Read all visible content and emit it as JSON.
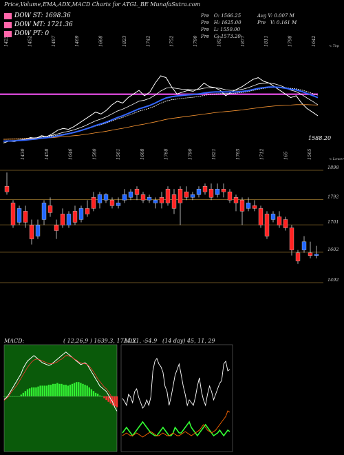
{
  "chart_data": [
    {
      "type": "line",
      "title": "Price,Volume,EMA,ADX,MACD Charts for ATGL_BE MunafaSutra.com",
      "legend": [
        {
          "name": "DOW ST: 1698.36",
          "color": "#ff66aa"
        },
        {
          "name": "DOW MT: 1721.36",
          "color": "#ff66aa"
        },
        {
          "name": "DOW PT: 0",
          "color": "#ff66aa"
        }
      ],
      "ohlc": {
        "open": "O: 1566.25",
        "high": "H: 1625.00",
        "low": "L: 1550.00",
        "close": "C: 1573.20",
        "prefix": "Pre"
      },
      "volume": {
        "avg": "Avg V: 0.007 M",
        "last": "V: 0.161 M"
      },
      "top_labels": [
        "1425",
        "1452",
        "1487",
        "1469",
        "1668",
        "1823",
        "1742",
        "1752",
        "1790",
        "1821",
        "1877",
        "1811",
        "1798",
        "1642"
      ],
      "top_edge_label": "< Top",
      "lower_labels": [
        "1430",
        "1458",
        "1646",
        "1580",
        "1561",
        "1608",
        "1768",
        "1790",
        "1821",
        "1765",
        "1712",
        "165",
        "1565"
      ],
      "lower_edge_label": "< Lower",
      "last_price_label": "1588.20",
      "horizontal_level": 1698.36,
      "series": [
        {
          "name": "price",
          "color": "#ffffff",
          "values": [
            1430,
            1440,
            1438,
            1445,
            1450,
            1460,
            1455,
            1470,
            1465,
            1480,
            1500,
            1510,
            1505,
            1520,
            1540,
            1560,
            1580,
            1600,
            1590,
            1610,
            1640,
            1660,
            1650,
            1680,
            1700,
            1720,
            1690,
            1710,
            1760,
            1800,
            1790,
            1740,
            1700,
            1710,
            1720,
            1715,
            1730,
            1760,
            1740,
            1735,
            1720,
            1690,
            1710,
            1725,
            1740,
            1760,
            1780,
            1790,
            1770,
            1760,
            1740,
            1720,
            1700,
            1680,
            1690,
            1650,
            1620,
            1600,
            1580
          ]
        },
        {
          "name": "ema-short",
          "color": "#ffffff",
          "values": [
            1440,
            1442,
            1444,
            1447,
            1450,
            1455,
            1458,
            1463,
            1467,
            1472,
            1480,
            1488,
            1494,
            1502,
            1512,
            1524,
            1538,
            1552,
            1562,
            1574,
            1590,
            1606,
            1616,
            1630,
            1645,
            1660,
            1666,
            1676,
            1694,
            1716,
            1732,
            1735,
            1730,
            1726,
            1725,
            1723,
            1725,
            1732,
            1734,
            1734,
            1731,
            1723,
            1720,
            1721,
            1725,
            1733,
            1744,
            1755,
            1759,
            1760,
            1756,
            1747,
            1735,
            1721,
            1713,
            1697,
            1678,
            1660,
            1640
          ]
        },
        {
          "name": "ema-mid",
          "color": "#ffffff",
          "values": [
            1450,
            1451,
            1452,
            1453,
            1455,
            1457,
            1459,
            1462,
            1465,
            1468,
            1473,
            1478,
            1483,
            1489,
            1496,
            1504,
            1513,
            1523,
            1531,
            1540,
            1551,
            1562,
            1571,
            1582,
            1593,
            1605,
            1613,
            1622,
            1634,
            1649,
            1661,
            1668,
            1672,
            1676,
            1679,
            1682,
            1686,
            1692,
            1697,
            1700,
            1702,
            1702,
            1703,
            1705,
            1708,
            1713,
            1719,
            1726,
            1731,
            1735,
            1737,
            1737,
            1735,
            1731,
            1728,
            1722,
            1713,
            1703,
            1692
          ]
        },
        {
          "name": "ema-long",
          "color": "#ff9933",
          "values": [
            1450,
            1451,
            1451,
            1452,
            1453,
            1454,
            1455,
            1456,
            1458,
            1459,
            1462,
            1464,
            1467,
            1470,
            1473,
            1477,
            1481,
            1486,
            1490,
            1495,
            1500,
            1506,
            1511,
            1517,
            1523,
            1529,
            1534,
            1540,
            1546,
            1553,
            1560,
            1565,
            1569,
            1573,
            1577,
            1581,
            1585,
            1589,
            1593,
            1597,
            1600,
            1603,
            1606,
            1609,
            1612,
            1616,
            1620,
            1624,
            1628,
            1631,
            1634,
            1636,
            1638,
            1639,
            1641,
            1641,
            1641,
            1640,
            1639
          ]
        },
        {
          "name": "ema-blue",
          "color": "#3366ff",
          "values": [
            1440,
            1441,
            1442,
            1444,
            1446,
            1449,
            1452,
            1456,
            1459,
            1463,
            1469,
            1475,
            1481,
            1488,
            1496,
            1505,
            1515,
            1526,
            1535,
            1545,
            1557,
            1570,
            1580,
            1592,
            1605,
            1618,
            1627,
            1637,
            1650,
            1665,
            1678,
            1685,
            1689,
            1692,
            1695,
            1697,
            1700,
            1705,
            1709,
            1711,
            1712,
            1711,
            1711,
            1712,
            1714,
            1718,
            1724,
            1731,
            1735,
            1738,
            1738,
            1736,
            1732,
            1726,
            1722,
            1714,
            1703,
            1692,
            1680
          ]
        }
      ]
    },
    {
      "type": "bar",
      "title": "",
      "price_levels": [
        {
          "label": "1898",
          "value": 1898
        },
        {
          "label": "1792",
          "value": 1792
        },
        {
          "label": "1701",
          "value": 1701
        },
        {
          "label": "1602",
          "value": 1602
        },
        {
          "label": "1492",
          "value": 1492
        }
      ],
      "candles": [
        {
          "o": 1840,
          "c": 1820,
          "h": 1890,
          "l": 1810
        },
        {
          "o": 1780,
          "c": 1700,
          "h": 1790,
          "l": 1690
        },
        {
          "o": 1710,
          "c": 1760,
          "h": 1770,
          "l": 1700
        },
        {
          "o": 1750,
          "c": 1710,
          "h": 1770,
          "l": 1690
        },
        {
          "o": 1700,
          "c": 1650,
          "h": 1720,
          "l": 1630
        },
        {
          "o": 1660,
          "c": 1700,
          "h": 1720,
          "l": 1650
        },
        {
          "o": 1720,
          "c": 1780,
          "h": 1790,
          "l": 1700
        },
        {
          "o": 1770,
          "c": 1745,
          "h": 1800,
          "l": 1730
        },
        {
          "o": 1700,
          "c": 1680,
          "h": 1720,
          "l": 1650
        },
        {
          "o": 1740,
          "c": 1700,
          "h": 1760,
          "l": 1690
        },
        {
          "o": 1700,
          "c": 1740,
          "h": 1750,
          "l": 1690
        },
        {
          "o": 1750,
          "c": 1710,
          "h": 1770,
          "l": 1700
        },
        {
          "o": 1720,
          "c": 1760,
          "h": 1770,
          "l": 1710
        },
        {
          "o": 1760,
          "c": 1740,
          "h": 1790,
          "l": 1730
        },
        {
          "o": 1800,
          "c": 1760,
          "h": 1820,
          "l": 1750
        },
        {
          "o": 1780,
          "c": 1810,
          "h": 1820,
          "l": 1760
        },
        {
          "o": 1790,
          "c": 1810,
          "h": 1815,
          "l": 1780
        },
        {
          "o": 1790,
          "c": 1770,
          "h": 1800,
          "l": 1760
        },
        {
          "o": 1770,
          "c": 1780,
          "h": 1800,
          "l": 1760
        },
        {
          "o": 1790,
          "c": 1810,
          "h": 1830,
          "l": 1780
        },
        {
          "o": 1800,
          "c": 1820,
          "h": 1830,
          "l": 1790
        },
        {
          "o": 1830,
          "c": 1810,
          "h": 1840,
          "l": 1790
        },
        {
          "o": 1810,
          "c": 1790,
          "h": 1820,
          "l": 1780
        },
        {
          "o": 1790,
          "c": 1800,
          "h": 1810,
          "l": 1780
        },
        {
          "o": 1780,
          "c": 1790,
          "h": 1800,
          "l": 1760
        },
        {
          "o": 1800,
          "c": 1780,
          "h": 1820,
          "l": 1760
        },
        {
          "o": 1830,
          "c": 1780,
          "h": 1840,
          "l": 1770
        },
        {
          "o": 1810,
          "c": 1760,
          "h": 1830,
          "l": 1740
        },
        {
          "o": 1830,
          "c": 1780,
          "h": 1840,
          "l": 1700
        },
        {
          "o": 1820,
          "c": 1800,
          "h": 1840,
          "l": 1790
        },
        {
          "o": 1800,
          "c": 1810,
          "h": 1820,
          "l": 1790
        },
        {
          "o": 1810,
          "c": 1830,
          "h": 1840,
          "l": 1800
        },
        {
          "o": 1840,
          "c": 1820,
          "h": 1850,
          "l": 1810
        },
        {
          "o": 1830,
          "c": 1800,
          "h": 1850,
          "l": 1790
        },
        {
          "o": 1810,
          "c": 1830,
          "h": 1850,
          "l": 1800
        },
        {
          "o": 1830,
          "c": 1820,
          "h": 1850,
          "l": 1800
        },
        {
          "o": 1820,
          "c": 1790,
          "h": 1830,
          "l": 1780
        },
        {
          "o": 1800,
          "c": 1780,
          "h": 1810,
          "l": 1750
        },
        {
          "o": 1790,
          "c": 1750,
          "h": 1800,
          "l": 1700
        },
        {
          "o": 1760,
          "c": 1780,
          "h": 1800,
          "l": 1750
        },
        {
          "o": 1770,
          "c": 1760,
          "h": 1790,
          "l": 1750
        },
        {
          "o": 1760,
          "c": 1700,
          "h": 1770,
          "l": 1690
        },
        {
          "o": 1740,
          "c": 1660,
          "h": 1750,
          "l": 1650
        },
        {
          "o": 1720,
          "c": 1740,
          "h": 1750,
          "l": 1710
        },
        {
          "o": 1730,
          "c": 1700,
          "h": 1750,
          "l": 1690
        },
        {
          "o": 1720,
          "c": 1690,
          "h": 1730,
          "l": 1680
        },
        {
          "o": 1690,
          "c": 1610,
          "h": 1700,
          "l": 1590
        },
        {
          "o": 1600,
          "c": 1570,
          "h": 1610,
          "l": 1560
        },
        {
          "o": 1610,
          "c": 1640,
          "h": 1660,
          "l": 1600
        },
        {
          "o": 1600,
          "c": 1590,
          "h": 1640,
          "l": 1580
        },
        {
          "o": 1590,
          "c": 1595,
          "h": 1625,
          "l": 1580
        }
      ]
    },
    {
      "type": "line",
      "title": "MACD:",
      "readout": "( 12,26,9 ) 1639.3, 1714.21, -54.9",
      "series": [
        {
          "name": "macd",
          "color": "#ffffff"
        },
        {
          "name": "signal",
          "color": "#ff3333"
        }
      ],
      "hist": [
        0,
        0,
        0,
        0,
        0,
        0,
        0,
        0,
        2,
        4,
        6,
        8,
        9,
        10,
        10,
        10,
        11,
        12,
        12,
        12,
        12,
        13,
        13,
        14,
        14,
        15,
        14,
        14,
        13,
        13,
        12,
        13,
        14,
        15,
        16,
        16,
        15,
        14,
        13,
        12,
        10,
        8,
        6,
        4,
        3,
        1,
        0,
        -2,
        -4,
        -6,
        -8,
        -10,
        -11,
        -12
      ],
      "macd": [
        -5,
        -3,
        0,
        4,
        8,
        12,
        16,
        20,
        24,
        30,
        34,
        38,
        40,
        42,
        44,
        42,
        40,
        38,
        36,
        35,
        34,
        33,
        34,
        36,
        38,
        40,
        42,
        44,
        46,
        48,
        46,
        44,
        42,
        40,
        38,
        36,
        34,
        35,
        36,
        34,
        30,
        26,
        22,
        18,
        14,
        10,
        8,
        6,
        4,
        0,
        -4,
        -8,
        -14,
        -18
      ],
      "signal": [
        -6,
        -4,
        -2,
        2,
        5,
        8,
        11,
        15,
        19,
        23,
        27,
        31,
        34,
        37,
        39,
        40,
        40,
        39,
        38,
        37,
        36,
        35,
        35,
        35,
        36,
        37,
        39,
        40,
        42,
        44,
        44,
        43,
        42,
        40,
        39,
        37,
        36,
        35,
        35,
        34,
        32,
        29,
        26,
        22,
        18,
        15,
        12,
        9,
        7,
        4,
        0,
        -4,
        -9,
        -14
      ]
    },
    {
      "type": "line",
      "title": "ADX",
      "readout": "(14 day) 45, 11, 29",
      "series": [
        {
          "name": "adx",
          "color": "#ffffff",
          "values": [
            35,
            33,
            30,
            38,
            36,
            32,
            40,
            42,
            36,
            32,
            28,
            30,
            34,
            30,
            36,
            55,
            62,
            64,
            60,
            58,
            54,
            44,
            40,
            30,
            36,
            44,
            52,
            56,
            60,
            52,
            44,
            38,
            30,
            34,
            32,
            30,
            36,
            44,
            50,
            40,
            34,
            30,
            38,
            44,
            40,
            34,
            38,
            42,
            46,
            48,
            60,
            62,
            55,
            56
          ]
        },
        {
          "name": "+di",
          "color": "#33ff33",
          "values": [
            10,
            12,
            14,
            12,
            10,
            8,
            10,
            12,
            14,
            16,
            18,
            16,
            14,
            12,
            10,
            9,
            8,
            8,
            10,
            12,
            14,
            12,
            10,
            8,
            8,
            10,
            14,
            12,
            10,
            10,
            12,
            14,
            16,
            18,
            14,
            12,
            10,
            8,
            10,
            12,
            14,
            16,
            14,
            12,
            10,
            8,
            9,
            10,
            12,
            10,
            8,
            10,
            12,
            11
          ]
        },
        {
          "name": "-di",
          "color": "#ff6600",
          "values": [
            8,
            9,
            10,
            9,
            8,
            8,
            9,
            10,
            9,
            8,
            7,
            8,
            9,
            10,
            11,
            10,
            9,
            8,
            8,
            9,
            10,
            9,
            8,
            8,
            9,
            10,
            9,
            8,
            8,
            9,
            10,
            11,
            10,
            9,
            8,
            9,
            10,
            11,
            12,
            14,
            16,
            14,
            12,
            11,
            10,
            11,
            12,
            14,
            16,
            18,
            20,
            22,
            26,
            25
          ]
        }
      ]
    }
  ]
}
